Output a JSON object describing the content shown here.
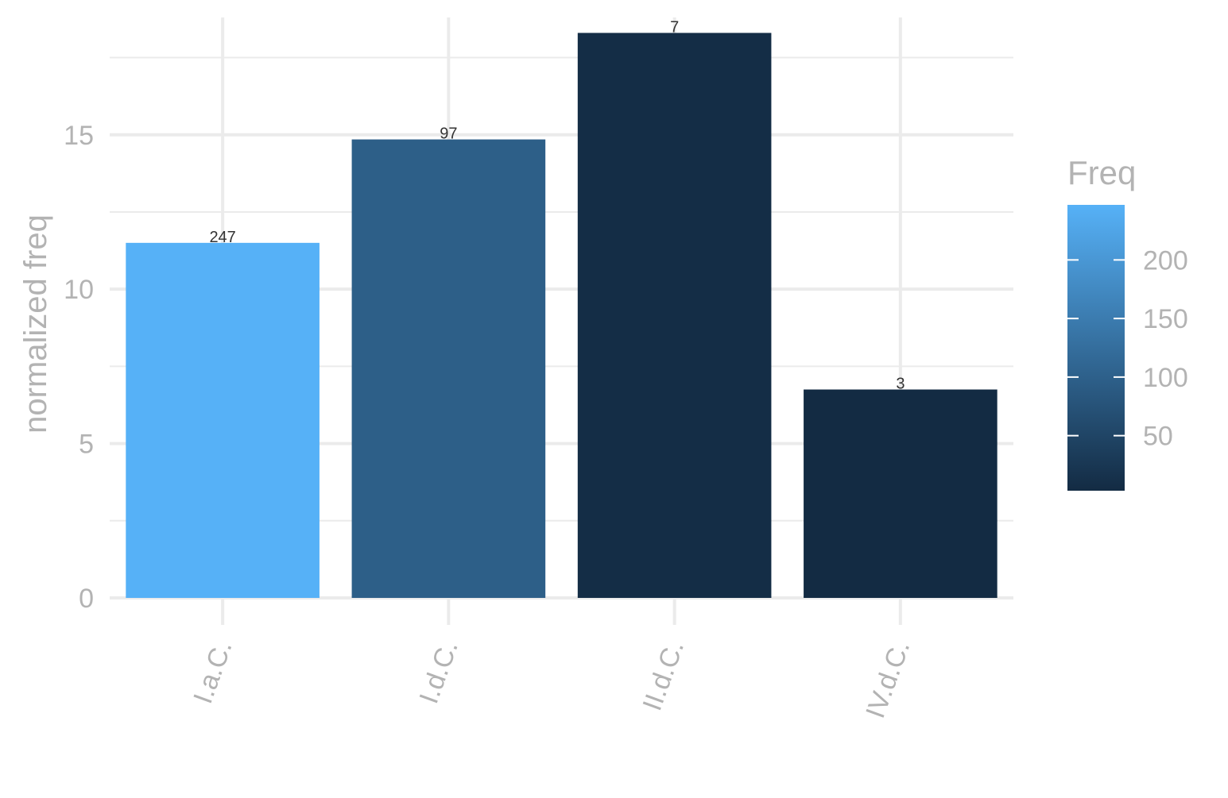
{
  "chart_data": {
    "type": "bar",
    "categories": [
      "I.a.C.",
      "I.d.C.",
      "II.d.C.",
      "IV.d.C."
    ],
    "values": [
      11.5,
      14.85,
      18.3,
      6.75
    ],
    "freq": [
      247,
      97,
      7,
      3
    ],
    "bar_labels": [
      "247",
      "97",
      "7",
      "3"
    ],
    "xlabel": "",
    "ylabel": "normalized freq",
    "ylim": [
      0,
      18.8
    ],
    "yticks": [
      0,
      5,
      10,
      15
    ],
    "ytick_labels": [
      "0",
      "5",
      "10",
      "15"
    ],
    "grid": true,
    "legend": {
      "title": "Freq",
      "type": "colorbar",
      "placement": "right",
      "range": [
        3,
        247
      ],
      "ticks": [
        50,
        100,
        150,
        200
      ],
      "tick_labels": [
        "50",
        "100",
        "150",
        "200"
      ],
      "color_low": "#132B43",
      "color_high": "#56B1F7"
    },
    "colors": {
      "grid": "#ebebeb",
      "axis_text": "#b3b3b3",
      "bar_label": "#333333"
    }
  }
}
